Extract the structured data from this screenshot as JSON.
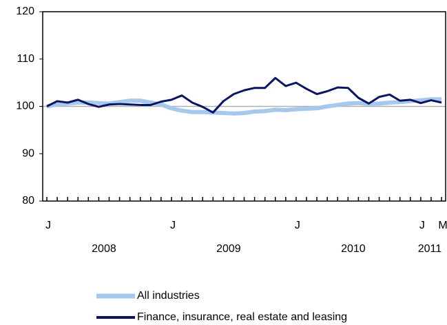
{
  "chart_data": {
    "type": "line",
    "categories": [
      "J",
      null,
      null,
      null,
      null,
      null,
      null,
      null,
      null,
      null,
      null,
      null,
      "J",
      null,
      null,
      null,
      null,
      null,
      null,
      null,
      null,
      null,
      null,
      null,
      "J",
      null,
      null,
      null,
      null,
      null,
      null,
      null,
      null,
      null,
      null,
      null,
      "J",
      null,
      "M"
    ],
    "years": [
      "2008",
      "2009",
      "2010",
      "2011"
    ],
    "series": [
      {
        "name": "All industries",
        "color": "#a6c8ec",
        "width": 6,
        "values": [
          100,
          100.4,
          100.6,
          100.8,
          100.8,
          100.7,
          100.6,
          100.9,
          101.2,
          101.2,
          100.8,
          100.4,
          99.6,
          99.1,
          98.8,
          98.8,
          98.7,
          98.6,
          98.5,
          98.6,
          98.9,
          99.0,
          99.3,
          99.2,
          99.4,
          99.5,
          99.6,
          100.0,
          100.3,
          100.6,
          100.7,
          100.5,
          100.6,
          100.8,
          100.9,
          101.1,
          101.3,
          101.5,
          101.5
        ]
      },
      {
        "name": "Finance, insurance, real estate and leasing",
        "color": "#0a1464",
        "width": 3,
        "values": [
          100,
          101.1,
          100.8,
          101.4,
          100.5,
          99.9,
          100.4,
          100.5,
          100.4,
          100.3,
          100.3,
          101.0,
          101.4,
          102.3,
          100.8,
          99.9,
          98.7,
          101.1,
          102.6,
          103.4,
          103.9,
          103.9,
          106.0,
          104.3,
          105.0,
          103.7,
          102.6,
          103.2,
          104.0,
          103.9,
          101.8,
          100.6,
          102.0,
          102.5,
          101.2,
          101.4,
          100.7,
          101.3,
          100.8
        ]
      }
    ],
    "baseline": 100,
    "ylim": [
      80,
      120
    ],
    "yticks": [
      80,
      90,
      100,
      110,
      120
    ]
  }
}
